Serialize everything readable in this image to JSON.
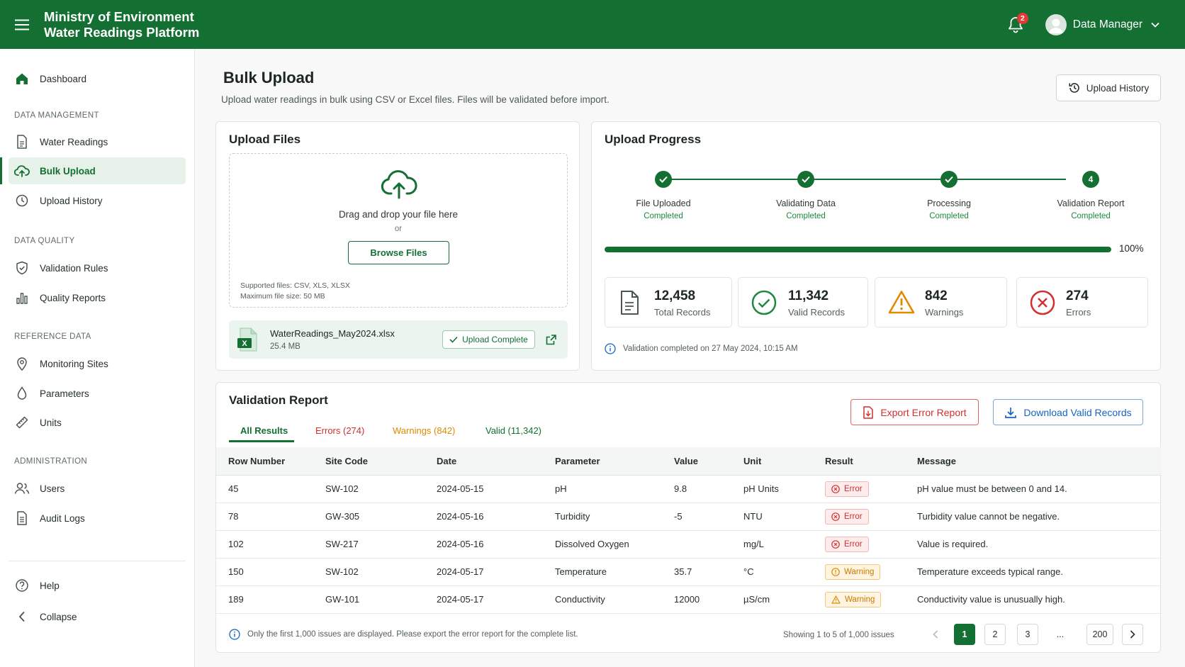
{
  "header": {
    "title_line1": "Ministry of Environment",
    "title_line2": "Water Readings Platform",
    "notification_count": "2",
    "user_name": "Data Manager",
    "bg_color": "#136f32"
  },
  "sidebar": {
    "dashboard": "Dashboard",
    "sections": {
      "data_management": "DATA MANAGEMENT",
      "data_quality": "DATA QUALITY",
      "reference_data": "REFERENCE DATA",
      "administration": "ADMINISTRATION"
    },
    "items": {
      "water_readings": "Water Readings",
      "bulk_upload": "Bulk Upload",
      "upload_history": "Upload History",
      "validation_rules": "Validation Rules",
      "quality_reports": "Quality Reports",
      "monitoring_sites": "Monitoring Sites",
      "parameters": "Parameters",
      "units": "Units",
      "users": "Users",
      "audit_logs": "Audit Logs",
      "help": "Help",
      "collapse": "Collapse"
    },
    "active": "bulk_upload"
  },
  "page": {
    "title": "Bulk Upload",
    "subtitle": "Upload water readings in bulk using CSV or Excel files. Files will be validated before import.",
    "history_button": "Upload History"
  },
  "upload": {
    "title": "Upload Files",
    "drop_text": "Drag and drop your file here",
    "or_text": "or",
    "browse_label": "Browse Files",
    "supported": "Supported files: CSV, XLS, XLSX",
    "max_size": "Maximum file size: 50 MB",
    "file_name": "WaterReadings_May2024.xlsx",
    "file_size": "25.4 MB",
    "file_icon_text": "X",
    "status": "Upload Complete"
  },
  "progress": {
    "title": "Upload Progress",
    "steps": [
      {
        "label": "File Uploaded",
        "status": "Completed"
      },
      {
        "label": "Validating Data",
        "status": "Completed"
      },
      {
        "label": "Processing",
        "status": "Completed"
      },
      {
        "label": "Validation Report",
        "status": "Completed",
        "number": "4"
      }
    ],
    "percent_value": 100,
    "percent_text": "100%",
    "stats": {
      "total": {
        "value": "12,458",
        "label": "Total Records"
      },
      "valid": {
        "value": "11,342",
        "label": "Valid Records"
      },
      "warnings": {
        "value": "842",
        "label": "Warnings"
      },
      "errors": {
        "value": "274",
        "label": "Errors"
      }
    },
    "completed_note": "Validation completed on 27 May 2024, 10:15 AM"
  },
  "report": {
    "title": "Validation Report",
    "tabs": {
      "all": "All Results",
      "errors": "Errors (274)",
      "warnings": "Warnings (842)",
      "valid": "Valid (11,342)"
    },
    "export_label": "Export Error Report",
    "download_label": "Download Valid Records",
    "columns": [
      "Row Number",
      "Site Code",
      "Date",
      "Parameter",
      "Value",
      "Unit",
      "Result",
      "Message"
    ],
    "rows": [
      {
        "row": "45",
        "site": "SW-102",
        "date": "2024-05-15",
        "parameter": "pH",
        "value": "9.8",
        "unit": "pH Units",
        "result": "Error",
        "message": "pH value must be between 0 and 14."
      },
      {
        "row": "78",
        "site": "GW-305",
        "date": "2024-05-16",
        "parameter": "Turbidity",
        "value": "-5",
        "unit": "NTU",
        "result": "Error",
        "message": "Turbidity value cannot be negative."
      },
      {
        "row": "102",
        "site": "SW-217",
        "date": "2024-05-16",
        "parameter": "Dissolved Oxygen",
        "value": "",
        "unit": "mg/L",
        "result": "Error",
        "message": "Value is required."
      },
      {
        "row": "150",
        "site": "SW-102",
        "date": "2024-05-17",
        "parameter": "Temperature",
        "value": "35.7",
        "unit": "°C",
        "result": "Warning",
        "message": "Temperature exceeds typical range."
      },
      {
        "row": "189",
        "site": "GW-101",
        "date": "2024-05-17",
        "parameter": "Conductivity",
        "value": "12000",
        "unit": "µS/cm",
        "result": "Warning",
        "message": "Conductivity value is unusually high."
      }
    ],
    "footer_note": "Only the first 1,000 issues are displayed. Please export the error report for the complete list.",
    "showing": "Showing 1 to 5 of 1,000 issues",
    "pagination": {
      "p1": "1",
      "p2": "2",
      "p3": "3",
      "ellipsis": "...",
      "last": "200"
    }
  },
  "colors": {
    "primary": "#136f32",
    "error": "#d32f2f",
    "warning": "#e08a00",
    "accent_blue": "#1565c0"
  }
}
